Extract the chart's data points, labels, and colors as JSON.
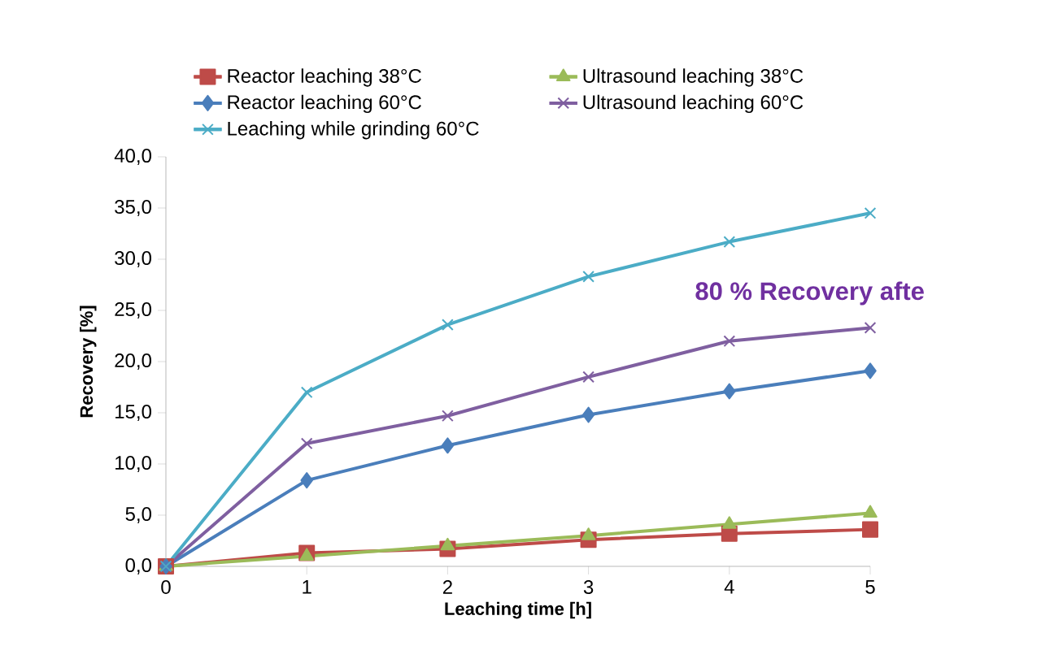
{
  "chart_data": {
    "type": "line",
    "xlabel": "Leaching time [h]",
    "ylabel": "Recovery [%]",
    "x": [
      0,
      1,
      2,
      3,
      4,
      5
    ],
    "xlim": [
      0,
      5
    ],
    "xticks": [
      0,
      1,
      2,
      3,
      4,
      5
    ],
    "ylim": [
      0,
      40
    ],
    "yticks": [
      {
        "value": 0,
        "label": "0,0"
      },
      {
        "value": 5,
        "label": "5,0"
      },
      {
        "value": 10,
        "label": "10,0"
      },
      {
        "value": 15,
        "label": "15,0"
      },
      {
        "value": 20,
        "label": "20,0"
      },
      {
        "value": 25,
        "label": "25,0"
      },
      {
        "value": 30,
        "label": "30,0"
      },
      {
        "value": 35,
        "label": "35,0"
      },
      {
        "value": 40,
        "label": "40,0"
      }
    ],
    "legend": "top",
    "line_style": "solid",
    "series": [
      {
        "name": "Reactor leaching 38°C",
        "color": "#be4b48",
        "marker": "square",
        "values": [
          0,
          1.3,
          1.7,
          2.6,
          3.2,
          3.6
        ]
      },
      {
        "name": "Ultrasound leaching 38°C",
        "color": "#9bbb59",
        "marker": "triangle",
        "values": [
          0,
          1.0,
          2.0,
          3.0,
          4.1,
          5.2
        ]
      },
      {
        "name": "Reactor leaching 60°C",
        "color": "#4a7ebb",
        "marker": "diamond",
        "values": [
          0,
          8.4,
          11.8,
          14.8,
          17.1,
          19.1
        ]
      },
      {
        "name": "Ultrasound leaching 60°C",
        "color": "#7f5fa0",
        "marker": "cross",
        "values": [
          0,
          12.0,
          14.7,
          18.5,
          22.0,
          23.3
        ]
      },
      {
        "name": "Leaching while grinding 60°C",
        "color": "#4bacc6",
        "marker": "cross",
        "values": [
          0,
          17.0,
          23.6,
          28.3,
          31.7,
          34.5
        ]
      }
    ],
    "annotations": [
      "80 % Recovery afte"
    ]
  }
}
